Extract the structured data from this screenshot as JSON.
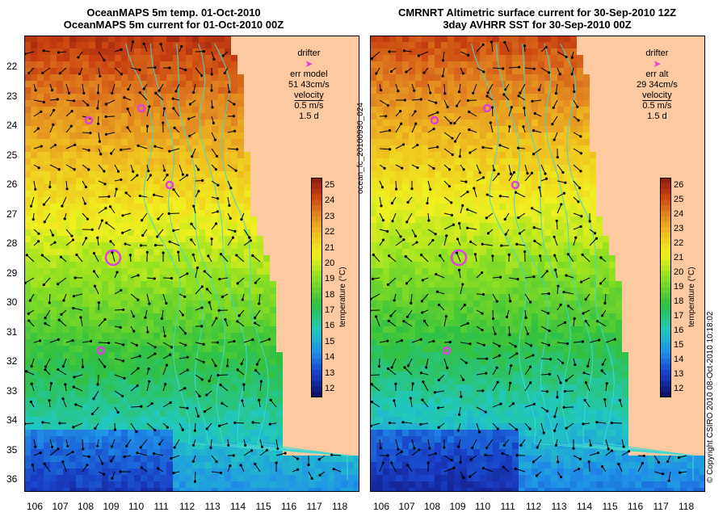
{
  "left_panel": {
    "title_line1": "OceanMAPS 5m temp. 01-Oct-2010",
    "title_line2": "OceanMAPS 5m current for 01-Oct-2010 00Z",
    "legend": {
      "drifter": "drifter",
      "err_label": "err model",
      "err_value": "51 43cm/s",
      "velocity": "velocity",
      "speed": "0.5 m/s",
      "duration": "1.5 d"
    },
    "cbar_ticks": [
      "25",
      "24",
      "23",
      "22",
      "21",
      "20",
      "19",
      "18",
      "17",
      "16",
      "15",
      "14",
      "13",
      "12"
    ],
    "cbar_title": "temperature (°C)"
  },
  "right_panel": {
    "title_line1": "CMRNRT Altimetric surface current for 30-Sep-2010 12Z",
    "title_line2": "3day AVHRR SST for 30-Sep-2010 00Z",
    "legend": {
      "drifter": "drifter",
      "err_label": "err alt",
      "err_value": "29 34cm/s",
      "velocity": "velocity",
      "speed": "0.5 m/s",
      "duration": "1.5 d"
    },
    "cbar_ticks": [
      "26",
      "25",
      "24",
      "23",
      "22",
      "21",
      "20",
      "19",
      "18",
      "17",
      "16",
      "15",
      "14",
      "13",
      "12"
    ],
    "cbar_title": "temperature (°C)"
  },
  "y_ticks": [
    "22",
    "23",
    "24",
    "25",
    "26",
    "27",
    "28",
    "29",
    "30",
    "31",
    "32",
    "33",
    "34",
    "35",
    "36"
  ],
  "x_ticks": [
    "106",
    "107",
    "108",
    "109",
    "110",
    "111",
    "112",
    "113",
    "114",
    "115",
    "116",
    "117",
    "118"
  ],
  "side_label": "ocean_fc_20100930_024",
  "copyright": "© Copyright CSIRO 2010   08-Oct-2010 10:18:02",
  "colors": {
    "land": "#fcc9a0",
    "land_dark": "#a89890",
    "contour": "#40d8d0",
    "drifter": "#e040e0"
  }
}
